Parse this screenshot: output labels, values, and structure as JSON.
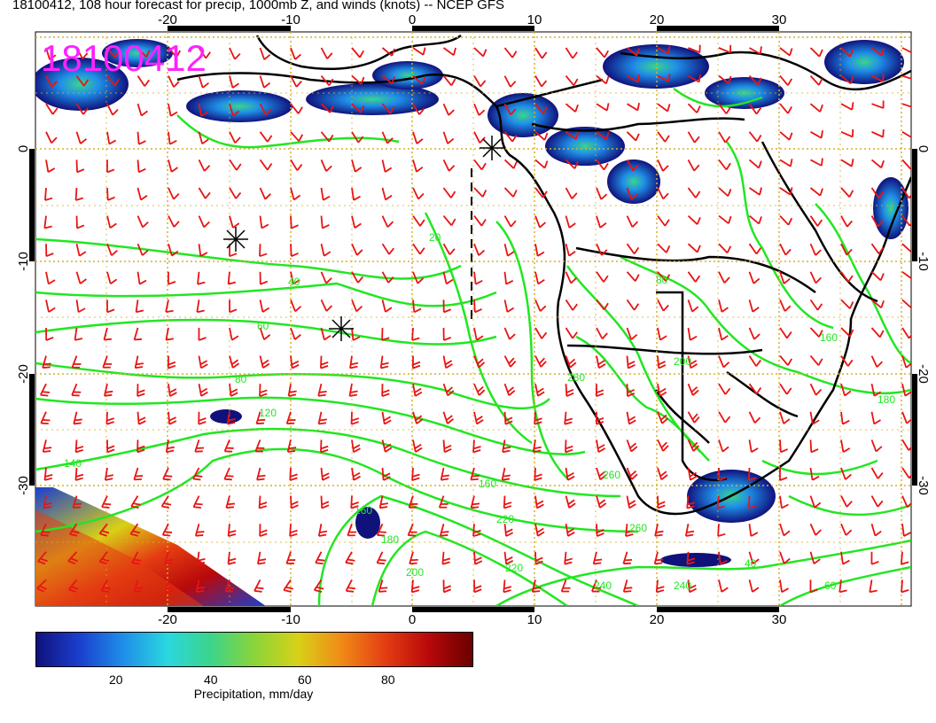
{
  "title": "18100412, 108 hour forecast for precip, 1000mb Z, and winds (knots) -- NCEP GFS",
  "stamp": "18100412",
  "axes": {
    "lon_ticks": [
      "-20",
      "-10",
      "0",
      "10",
      "20",
      "30"
    ],
    "lat_ticks": [
      "0",
      "-10",
      "-20",
      "-30"
    ]
  },
  "contour_labels": [
    "20",
    "40",
    "60",
    "80",
    "120",
    "140",
    "160",
    "160",
    "180",
    "200",
    "220",
    "220",
    "240",
    "240",
    "260",
    "260",
    "280",
    "200",
    "40",
    "60",
    "80",
    "160",
    "180"
  ],
  "colorbar": {
    "ticks": [
      "20",
      "40",
      "60",
      "80"
    ],
    "label": "Precipitation, mm/day",
    "colors": [
      "#10127c",
      "#1b3fcf",
      "#1f8fe8",
      "#2ad7e0",
      "#3cd48a",
      "#8ad439",
      "#d8d117",
      "#f08a16",
      "#e43d12",
      "#b8080a",
      "#6a0000"
    ]
  },
  "colors": {
    "barb": "#e81414",
    "contour": "#22e622",
    "coast": "#000000",
    "grid": "#d6b028",
    "stamp": "#ff22ff"
  }
}
